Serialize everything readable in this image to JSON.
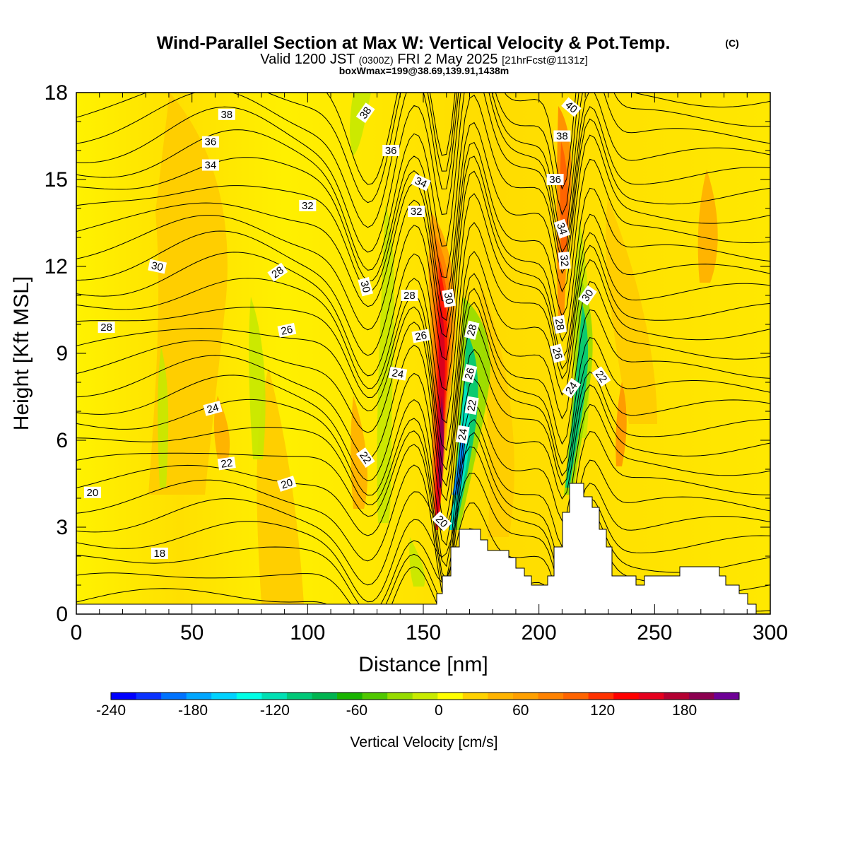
{
  "header": {
    "title": "Wind-Parallel Section at Max W: Vertical Velocity & Pot.Temp.",
    "copyright": "(C)",
    "valid_prefix": "Valid 1200 JST",
    "valid_utc": "(0300Z)",
    "valid_date": "FRI 2 May 2025",
    "forecast_info": "[21hrFcst@1131z]",
    "box_info": "boxWmax=199@38.69,139.91,1438m"
  },
  "chart_data": {
    "type": "heatmap",
    "xlabel": "Distance [nm]",
    "ylabel": "Height [Kft MSL]",
    "xlim": [
      0,
      300
    ],
    "ylim": [
      0,
      18
    ],
    "x_ticks": [
      "0",
      "50",
      "100",
      "150",
      "200",
      "250",
      "300"
    ],
    "y_ticks": [
      "0",
      "3",
      "6",
      "9",
      "12",
      "15",
      "18"
    ],
    "colorbar": {
      "label": "Vertical Velocity [cm/s]",
      "range": [
        -240,
        220
      ],
      "tick_labels": [
        "-240",
        "-180",
        "-120",
        "-60",
        "0",
        "60",
        "120",
        "180"
      ],
      "colors": [
        "#0000ff",
        "#0a32ff",
        "#0073ff",
        "#00a6ff",
        "#00d2ff",
        "#00ffe6",
        "#00e0b4",
        "#00c878",
        "#00b450",
        "#19b400",
        "#50c800",
        "#96dc00",
        "#c8eb00",
        "#ffff00",
        "#ffd200",
        "#ffb400",
        "#ffa000",
        "#ff8200",
        "#ff6400",
        "#ff3200",
        "#ff0000",
        "#e6001e",
        "#b40032",
        "#8c0050",
        "#6e0096"
      ]
    },
    "contour_labels": [
      {
        "text": "38",
        "x": 65,
        "y": 17.25,
        "rot": 0
      },
      {
        "text": "36",
        "x": 58,
        "y": 16.3,
        "rot": 0
      },
      {
        "text": "34",
        "x": 58,
        "y": 15.5,
        "rot": 0
      },
      {
        "text": "32",
        "x": 100,
        "y": 14.1,
        "rot": 0
      },
      {
        "text": "30",
        "x": 35,
        "y": 12.0,
        "rot": 12
      },
      {
        "text": "28",
        "x": 13,
        "y": 9.9,
        "rot": 0
      },
      {
        "text": "20",
        "x": 7,
        "y": 4.2,
        "rot": 0
      },
      {
        "text": "18",
        "x": 36,
        "y": 2.1,
        "rot": 0
      },
      {
        "text": "24",
        "x": 59,
        "y": 7.1,
        "rot": -15
      },
      {
        "text": "22",
        "x": 65,
        "y": 5.2,
        "rot": -8
      },
      {
        "text": "20",
        "x": 91,
        "y": 4.5,
        "rot": -18
      },
      {
        "text": "28",
        "x": 87,
        "y": 11.8,
        "rot": -35
      },
      {
        "text": "26",
        "x": 91,
        "y": 9.8,
        "rot": -12
      },
      {
        "text": "38",
        "x": 125,
        "y": 17.3,
        "rot": -55
      },
      {
        "text": "36",
        "x": 136,
        "y": 16.0,
        "rot": 0
      },
      {
        "text": "30",
        "x": 125,
        "y": 11.3,
        "rot": 75
      },
      {
        "text": "28",
        "x": 144,
        "y": 11.0,
        "rot": 0
      },
      {
        "text": "26",
        "x": 149,
        "y": 9.6,
        "rot": -10
      },
      {
        "text": "24",
        "x": 139,
        "y": 8.3,
        "rot": 10
      },
      {
        "text": "22",
        "x": 125,
        "y": 5.4,
        "rot": 55
      },
      {
        "text": "34",
        "x": 149,
        "y": 14.9,
        "rot": 25
      },
      {
        "text": "32",
        "x": 147,
        "y": 13.9,
        "rot": 0
      },
      {
        "text": "30",
        "x": 161,
        "y": 10.9,
        "rot": 80
      },
      {
        "text": "20",
        "x": 158,
        "y": 3.2,
        "rot": 45
      },
      {
        "text": "28",
        "x": 171,
        "y": 9.8,
        "rot": -75
      },
      {
        "text": "26",
        "x": 170,
        "y": 8.3,
        "rot": -75
      },
      {
        "text": "22",
        "x": 171,
        "y": 7.2,
        "rot": -80
      },
      {
        "text": "24",
        "x": 167,
        "y": 6.2,
        "rot": -80
      },
      {
        "text": "40",
        "x": 214,
        "y": 17.5,
        "rot": 40
      },
      {
        "text": "38",
        "x": 210,
        "y": 16.5,
        "rot": 0
      },
      {
        "text": "36",
        "x": 207,
        "y": 15.0,
        "rot": 0
      },
      {
        "text": "34",
        "x": 210,
        "y": 13.3,
        "rot": 70
      },
      {
        "text": "32",
        "x": 211,
        "y": 12.2,
        "rot": 85
      },
      {
        "text": "30",
        "x": 221,
        "y": 11.0,
        "rot": -55
      },
      {
        "text": "28",
        "x": 209,
        "y": 10.0,
        "rot": 80
      },
      {
        "text": "26",
        "x": 208,
        "y": 9.0,
        "rot": 75
      },
      {
        "text": "24",
        "x": 214,
        "y": 7.8,
        "rot": -55
      },
      {
        "text": "22",
        "x": 227,
        "y": 8.2,
        "rot": 55
      }
    ]
  }
}
